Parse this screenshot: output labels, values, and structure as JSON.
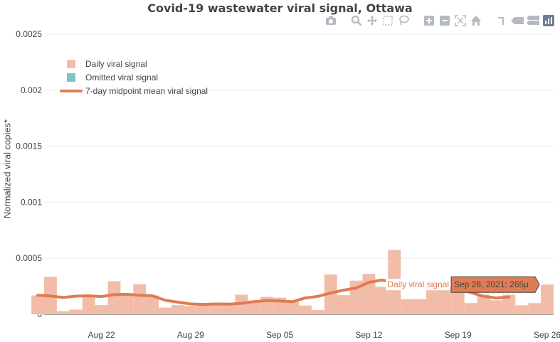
{
  "chart_data": {
    "type": "bar",
    "title": "Covid-19 wastewater viral signal, Ottawa",
    "ylabel": "Normalized viral copies*",
    "ylim": [
      0,
      0.0025
    ],
    "y_ticks": [
      "0",
      "0.0005",
      "0.001",
      "0.0015",
      "0.002",
      "0.0025"
    ],
    "y_tick_values": [
      0,
      0.0005,
      0.001,
      0.0015,
      0.002,
      0.0025
    ],
    "x_ticks": [
      "Aug 22",
      "Aug 29",
      "Sep 05",
      "Sep 12",
      "Sep 19",
      "Sep 26"
    ],
    "x_tick_dates": [
      "2021-08-22",
      "2021-08-29",
      "2021-09-05",
      "2021-09-12",
      "2021-09-19",
      "2021-09-26"
    ],
    "x_range": [
      "2021-08-17 12:00",
      "2021-09-26 12:00"
    ],
    "legend_placement": "top-left",
    "grid": true,
    "series": [
      {
        "name": "Daily viral signal",
        "kind": "bar",
        "color": "#f2bda8",
        "dates": [
          "2021-08-17",
          "2021-08-18",
          "2021-08-19",
          "2021-08-20",
          "2021-08-21",
          "2021-08-22",
          "2021-08-23",
          "2021-08-24",
          "2021-08-25",
          "2021-08-26",
          "2021-08-27",
          "2021-08-28",
          "2021-08-29",
          "2021-08-30",
          "2021-08-31",
          "2021-09-01",
          "2021-09-02",
          "2021-09-03",
          "2021-09-04",
          "2021-09-05",
          "2021-09-06",
          "2021-09-07",
          "2021-09-08",
          "2021-09-09",
          "2021-09-10",
          "2021-09-11",
          "2021-09-12",
          "2021-09-13",
          "2021-09-14",
          "2021-09-15",
          "2021-09-16",
          "2021-09-17",
          "2021-09-18",
          "2021-09-19",
          "2021-09-20",
          "2021-09-21",
          "2021-09-22",
          "2021-09-23",
          "2021-09-24",
          "2021-09-25",
          "2021-09-26"
        ],
        "values": [
          0.000168,
          0.000335,
          2.8e-05,
          4.2e-05,
          0.000158,
          8.2e-05,
          0.000295,
          0.00017,
          0.000268,
          0.000168,
          6e-05,
          8.2e-05,
          7.5e-05,
          8.2e-05,
          9e-05,
          8.8e-05,
          0.000175,
          0.000122,
          0.000155,
          0.000148,
          0.000118,
          7.8e-05,
          3.8e-05,
          0.000355,
          0.00017,
          0.0003,
          0.00036,
          0.000245,
          0.000575,
          0.000135,
          0.000135,
          0.00023,
          0.00023,
          0.00023,
          0.0001,
          0.000175,
          0.000125,
          0.000175,
          8e-05,
          0.0001,
          0.000265
        ]
      },
      {
        "name": "Omitted viral signal",
        "kind": "bar",
        "color": "#7fc4c1",
        "values": []
      },
      {
        "name": "7-day midpoint mean viral signal",
        "kind": "line",
        "color": "#e07b53",
        "dates": [
          "2021-08-17",
          "2021-08-18",
          "2021-08-19",
          "2021-08-20",
          "2021-08-21",
          "2021-08-22",
          "2021-08-23",
          "2021-08-24",
          "2021-08-25",
          "2021-08-26",
          "2021-08-27",
          "2021-08-28",
          "2021-08-29",
          "2021-08-30",
          "2021-08-31",
          "2021-09-01",
          "2021-09-02",
          "2021-09-03",
          "2021-09-04",
          "2021-09-05",
          "2021-09-06",
          "2021-09-07",
          "2021-09-08",
          "2021-09-09",
          "2021-09-10",
          "2021-09-11",
          "2021-09-12",
          "2021-09-13",
          "2021-09-14",
          "2021-09-15",
          "2021-09-16",
          "2021-09-17",
          "2021-09-18",
          "2021-09-19",
          "2021-09-20",
          "2021-09-21",
          "2021-09-22",
          "2021-09-23"
        ],
        "values": [
          0.00017,
          0.000163,
          0.00015,
          0.000162,
          0.000165,
          0.000158,
          0.000175,
          0.000178,
          0.00017,
          0.000165,
          0.000125,
          0.000108,
          9.2e-05,
          8.8e-05,
          9.2e-05,
          9e-05,
          9.8e-05,
          0.000113,
          0.000122,
          0.000118,
          0.000112,
          0.000145,
          0.00016,
          0.00019,
          0.000215,
          0.000235,
          0.000285,
          0.000305,
          0.000285,
          0.00025,
          0.00024,
          0.000238,
          0.000232,
          0.000228,
          0.000195,
          0.00016,
          0.000145,
          0.000155
        ]
      }
    ],
    "hover_label": {
      "series": "Daily viral signal",
      "value_text": "Sep 26, 2021: 265µ"
    }
  },
  "modebar": {
    "icons": [
      "camera-icon",
      "zoom-icon",
      "pan-icon",
      "box-select-icon",
      "lasso-icon",
      "zoom-in-icon",
      "zoom-out-icon",
      "autoscale-icon",
      "reset-axes-icon",
      "spike-lines-icon",
      "hover-closest-icon",
      "hover-compare-icon",
      "plotly-logo-icon"
    ]
  }
}
